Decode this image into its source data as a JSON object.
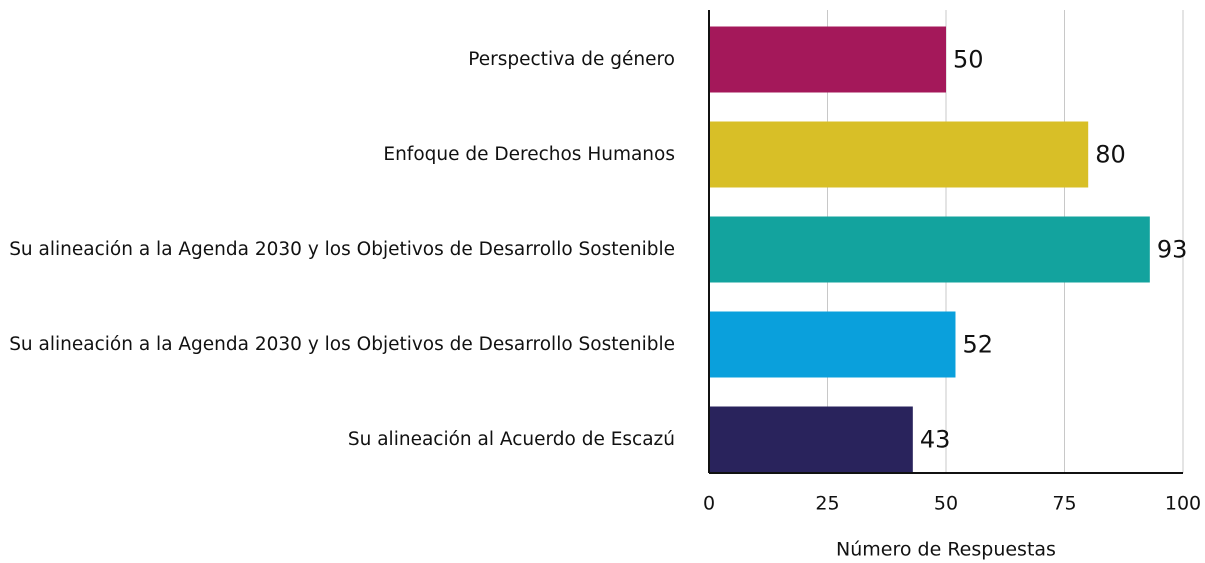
{
  "chart_data": {
    "type": "barh",
    "categories": [
      "Perspectiva de género",
      "Enfoque de Derechos Humanos",
      "Su alineación a la Agenda 2030 y los Objetivos de Desarrollo Sostenible",
      "Su alineación a la Agenda 2030 y los Objetivos de Desarrollo Sostenible",
      "Su alineación al Acuerdo de Escazú"
    ],
    "values": [
      50,
      80,
      93,
      52,
      43
    ],
    "colors": [
      "#a4185a",
      "#d8bf27",
      "#13a39e",
      "#0aa0dc",
      "#29235c"
    ],
    "xlim": [
      0,
      100
    ],
    "xticks": [
      0,
      25,
      50,
      75,
      100
    ],
    "grid": true,
    "x_label": "Número de Respuestas"
  }
}
